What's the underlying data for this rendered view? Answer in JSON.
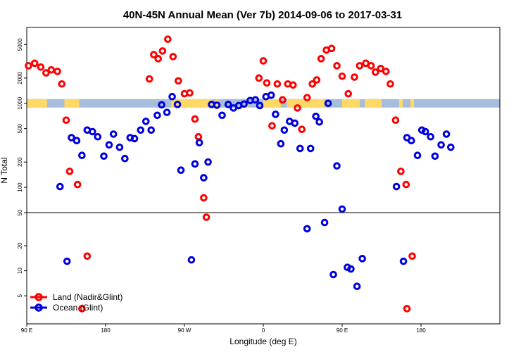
{
  "chart_data": {
    "type": "scatter",
    "title": "40N-45N Annual Mean (Ver 7b)   2014-09-06 to 2017-03-31",
    "xlabel": "Longitude (deg E)",
    "ylabel": "N Total",
    "x_axis": {
      "range": [
        90,
        630
      ],
      "ticks": [
        {
          "value": 90,
          "label": "90 E"
        },
        {
          "value": 180,
          "label": "180"
        },
        {
          "value": 270,
          "label": "90 W"
        },
        {
          "value": 360,
          "label": "0"
        },
        {
          "value": 450,
          "label": "90 E"
        },
        {
          "value": 540,
          "label": "180"
        }
      ]
    },
    "panels": [
      {
        "name": "upper",
        "scale": "log",
        "ylim": [
          50,
          8000
        ],
        "ticks": [
          {
            "value": 50,
            "label": "50"
          },
          {
            "value": 100,
            "label": "100"
          },
          {
            "value": 200,
            "label": "200"
          },
          {
            "value": 500,
            "label": "500"
          },
          {
            "value": 1000,
            "label": "1000"
          },
          {
            "value": 2000,
            "label": "2000"
          },
          {
            "value": 5000,
            "label": "5000"
          }
        ]
      },
      {
        "name": "lower",
        "scale": "log",
        "ylim": [
          2.3,
          50
        ],
        "ticks": [
          {
            "value": 5,
            "label": "5"
          },
          {
            "value": 10,
            "label": "10"
          },
          {
            "value": 20,
            "label": "20"
          },
          {
            "value": 50,
            "label": "50"
          }
        ]
      }
    ],
    "land_ocean_band": {
      "y": 1000,
      "land_color": "#ffd966",
      "ocean_color": "#a6bedc"
    },
    "series": [
      {
        "name": "Land (Nadir&Glint)",
        "color": "#ff0000",
        "points": [
          [
            92,
            2800
          ],
          [
            99,
            3000
          ],
          [
            106,
            2700
          ],
          [
            112,
            2300
          ],
          [
            118,
            2500
          ],
          [
            125,
            2400
          ],
          [
            130,
            1700
          ],
          [
            135,
            630
          ],
          [
            139,
            155
          ],
          [
            148,
            108
          ],
          [
            159,
            15
          ],
          [
            153,
            3.5
          ],
          [
            230,
            1950
          ],
          [
            235,
            3800
          ],
          [
            240,
            3400
          ],
          [
            245,
            4200
          ],
          [
            251,
            5800
          ],
          [
            257,
            3600
          ],
          [
            263,
            1850
          ],
          [
            270,
            1300
          ],
          [
            276,
            1330
          ],
          [
            282,
            650
          ],
          [
            286,
            400
          ],
          [
            292,
            75
          ],
          [
            295,
            44
          ],
          [
            355,
            2000
          ],
          [
            360,
            3200
          ],
          [
            364,
            1750
          ],
          [
            370,
            540
          ],
          [
            376,
            1700
          ],
          [
            382,
            1100
          ],
          [
            388,
            1700
          ],
          [
            394,
            1650
          ],
          [
            399,
            880
          ],
          [
            404,
            490
          ],
          [
            410,
            1170
          ],
          [
            416,
            1700
          ],
          [
            421,
            1900
          ],
          [
            426,
            3400
          ],
          [
            432,
            4300
          ],
          [
            438,
            4500
          ],
          [
            444,
            2800
          ],
          [
            450,
            2100
          ],
          [
            457,
            1300
          ],
          [
            464,
            2050
          ],
          [
            470,
            2800
          ],
          [
            477,
            3000
          ],
          [
            483,
            2800
          ],
          [
            488,
            2350
          ],
          [
            494,
            2600
          ],
          [
            500,
            2400
          ],
          [
            505,
            1700
          ],
          [
            511,
            630
          ],
          [
            517,
            155
          ],
          [
            523,
            108
          ],
          [
            530,
            15
          ],
          [
            524,
            3.5
          ]
        ]
      },
      {
        "name": "Ocean (Glint)",
        "color": "#0000dd",
        "points": [
          [
            128,
            102
          ],
          [
            136,
            13
          ],
          [
            141,
            390
          ],
          [
            147,
            360
          ],
          [
            153,
            240
          ],
          [
            159,
            480
          ],
          [
            165,
            460
          ],
          [
            171,
            400
          ],
          [
            178,
            235
          ],
          [
            184,
            320
          ],
          [
            189,
            430
          ],
          [
            196,
            300
          ],
          [
            202,
            220
          ],
          [
            208,
            390
          ],
          [
            213,
            380
          ],
          [
            220,
            480
          ],
          [
            226,
            610
          ],
          [
            232,
            480
          ],
          [
            239,
            720
          ],
          [
            244,
            960
          ],
          [
            250,
            780
          ],
          [
            256,
            1200
          ],
          [
            262,
            970
          ],
          [
            266,
            160
          ],
          [
            278,
            13.5
          ],
          [
            282,
            190
          ],
          [
            287,
            340
          ],
          [
            292,
            130
          ],
          [
            297,
            200
          ],
          [
            301,
            970
          ],
          [
            307,
            950
          ],
          [
            313,
            720
          ],
          [
            320,
            970
          ],
          [
            326,
            880
          ],
          [
            332,
            940
          ],
          [
            338,
            980
          ],
          [
            345,
            1080
          ],
          [
            351,
            1100
          ],
          [
            356,
            940
          ],
          [
            363,
            1200
          ],
          [
            369,
            1250
          ],
          [
            374,
            740
          ],
          [
            380,
            330
          ],
          [
            384,
            480
          ],
          [
            390,
            610
          ],
          [
            396,
            580
          ],
          [
            402,
            290
          ],
          [
            410,
            32
          ],
          [
            414,
            290
          ],
          [
            420,
            700
          ],
          [
            424,
            600
          ],
          [
            430,
            38
          ],
          [
            434,
            1000
          ],
          [
            440,
            9
          ],
          [
            444,
            180
          ],
          [
            450,
            55
          ],
          [
            456,
            11
          ],
          [
            460,
            10.5
          ],
          [
            467,
            6.5
          ],
          [
            473,
            14
          ],
          [
            512,
            102
          ],
          [
            520,
            13
          ],
          [
            524,
            390
          ],
          [
            529,
            360
          ],
          [
            536,
            240
          ],
          [
            541,
            480
          ],
          [
            545,
            460
          ],
          [
            551,
            400
          ],
          [
            556,
            235
          ],
          [
            563,
            320
          ],
          [
            569,
            430
          ],
          [
            574,
            300
          ]
        ]
      }
    ],
    "legend": {
      "position": "bottom-left",
      "entries": [
        "Land (Nadir&Glint)",
        "Ocean (Glint)"
      ]
    }
  }
}
